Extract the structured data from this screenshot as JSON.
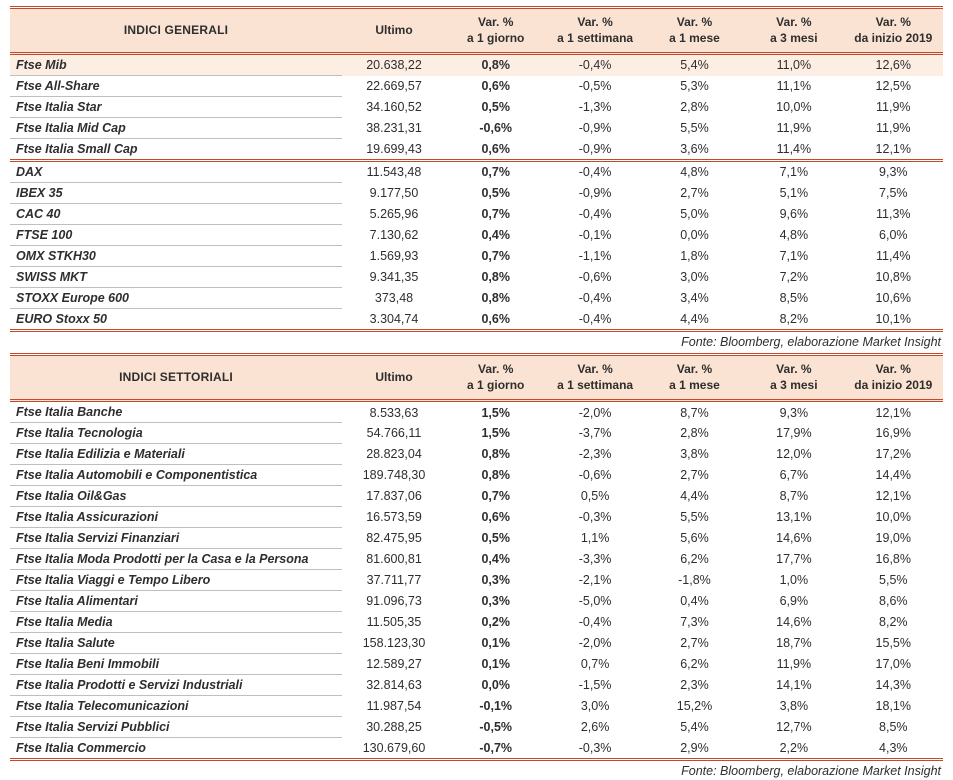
{
  "colors": {
    "accent_border": "#c2492b",
    "header_bg": "#fbe3d3",
    "highlight_bg": "#fdeee3",
    "text": "#2e2e2e",
    "row_line": "#bfbfbf"
  },
  "tables": [
    {
      "title": "INDICI GENERALI",
      "columns": [
        {
          "line1": "Ultimo",
          "line2": ""
        },
        {
          "line1": "Var. %",
          "line2": "a 1 giorno"
        },
        {
          "line1": "Var. %",
          "line2": "a 1 settimana"
        },
        {
          "line1": "Var. %",
          "line2": "a 1 mese"
        },
        {
          "line1": "Var. %",
          "line2": "a 3 mesi"
        },
        {
          "line1": "Var. %",
          "line2": "da inizio 2019"
        }
      ],
      "groups": [
        {
          "rows": [
            {
              "name": "Ftse Mib",
              "highlight": true,
              "values": [
                "20.638,22",
                "0,8%",
                "-0,4%",
                "5,4%",
                "11,0%",
                "12,6%"
              ]
            },
            {
              "name": "Ftse All-Share",
              "values": [
                "22.669,57",
                "0,6%",
                "-0,5%",
                "5,3%",
                "11,1%",
                "12,5%"
              ]
            },
            {
              "name": "Ftse Italia Star",
              "values": [
                "34.160,52",
                "0,5%",
                "-1,3%",
                "2,8%",
                "10,0%",
                "11,9%"
              ]
            },
            {
              "name": "Ftse Italia Mid Cap",
              "values": [
                "38.231,31",
                "-0,6%",
                "-0,9%",
                "5,5%",
                "11,9%",
                "11,9%"
              ]
            },
            {
              "name": "Ftse Italia Small Cap",
              "values": [
                "19.699,43",
                "0,6%",
                "-0,9%",
                "3,6%",
                "11,4%",
                "12,1%"
              ]
            }
          ]
        },
        {
          "rows": [
            {
              "name": "DAX",
              "values": [
                "11.543,48",
                "0,7%",
                "-0,4%",
                "4,8%",
                "7,1%",
                "9,3%"
              ]
            },
            {
              "name": "IBEX 35",
              "values": [
                "9.177,50",
                "0,5%",
                "-0,9%",
                "2,7%",
                "5,1%",
                "7,5%"
              ]
            },
            {
              "name": "CAC 40",
              "values": [
                "5.265,96",
                "0,7%",
                "-0,4%",
                "5,0%",
                "9,6%",
                "11,3%"
              ]
            },
            {
              "name": "FTSE 100",
              "values": [
                "7.130,62",
                "0,4%",
                "-0,1%",
                "0,0%",
                "4,8%",
                "6,0%"
              ]
            },
            {
              "name": "OMX STKH30",
              "values": [
                "1.569,93",
                "0,7%",
                "-1,1%",
                "1,8%",
                "7,1%",
                "11,4%"
              ]
            },
            {
              "name": "SWISS MKT",
              "values": [
                "9.341,35",
                "0,8%",
                "-0,6%",
                "3,0%",
                "7,2%",
                "10,8%"
              ]
            },
            {
              "name": "STOXX Europe 600",
              "values": [
                "373,48",
                "0,8%",
                "-0,4%",
                "3,4%",
                "8,5%",
                "10,6%"
              ]
            },
            {
              "name": "EURO Stoxx 50",
              "values": [
                "3.304,74",
                "0,6%",
                "-0,4%",
                "4,4%",
                "8,2%",
                "10,1%"
              ]
            }
          ]
        }
      ],
      "source": "Fonte: Bloomberg, elaborazione Market Insight"
    },
    {
      "title": "INDICI SETTORIALI",
      "columns": [
        {
          "line1": "Ultimo",
          "line2": ""
        },
        {
          "line1": "Var. %",
          "line2": "a 1 giorno"
        },
        {
          "line1": "Var. %",
          "line2": "a 1 settimana"
        },
        {
          "line1": "Var. %",
          "line2": "a 1 mese"
        },
        {
          "line1": "Var. %",
          "line2": "a 3 mesi"
        },
        {
          "line1": "Var. %",
          "line2": "da inizio 2019"
        }
      ],
      "groups": [
        {
          "rows": [
            {
              "name": "Ftse Italia Banche",
              "values": [
                "8.533,63",
                "1,5%",
                "-2,0%",
                "8,7%",
                "9,3%",
                "12,1%"
              ]
            },
            {
              "name": "Ftse Italia Tecnologia",
              "values": [
                "54.766,11",
                "1,5%",
                "-3,7%",
                "2,8%",
                "17,9%",
                "16,9%"
              ]
            },
            {
              "name": "Ftse Italia Edilizia e Materiali",
              "values": [
                "28.823,04",
                "0,8%",
                "-2,3%",
                "3,8%",
                "12,0%",
                "17,2%"
              ]
            },
            {
              "name": "Ftse Italia Automobili e Componentistica",
              "values": [
                "189.748,30",
                "0,8%",
                "-0,6%",
                "2,7%",
                "6,7%",
                "14,4%"
              ]
            },
            {
              "name": "Ftse Italia Oil&Gas",
              "values": [
                "17.837,06",
                "0,7%",
                "0,5%",
                "4,4%",
                "8,7%",
                "12,1%"
              ]
            },
            {
              "name": "Ftse Italia Assicurazioni",
              "values": [
                "16.573,59",
                "0,6%",
                "-0,3%",
                "5,5%",
                "13,1%",
                "10,0%"
              ]
            },
            {
              "name": "Ftse Italia Servizi Finanziari",
              "values": [
                "82.475,95",
                "0,5%",
                "1,1%",
                "5,6%",
                "14,6%",
                "19,0%"
              ]
            },
            {
              "name": "Ftse Italia Moda Prodotti per la Casa e la Persona",
              "values": [
                "81.600,81",
                "0,4%",
                "-3,3%",
                "6,2%",
                "17,7%",
                "16,8%"
              ]
            },
            {
              "name": "Ftse Italia Viaggi e Tempo Libero",
              "values": [
                "37.711,77",
                "0,3%",
                "-2,1%",
                "-1,8%",
                "1,0%",
                "5,5%"
              ]
            },
            {
              "name": "Ftse Italia Alimentari",
              "values": [
                "91.096,73",
                "0,3%",
                "-5,0%",
                "0,4%",
                "6,9%",
                "8,6%"
              ]
            },
            {
              "name": "Ftse Italia Media",
              "values": [
                "11.505,35",
                "0,2%",
                "-0,4%",
                "7,3%",
                "14,6%",
                "8,2%"
              ]
            },
            {
              "name": "Ftse Italia Salute",
              "values": [
                "158.123,30",
                "0,1%",
                "-2,0%",
                "2,7%",
                "18,7%",
                "15,5%"
              ]
            },
            {
              "name": "Ftse Italia Beni Immobili",
              "values": [
                "12.589,27",
                "0,1%",
                "0,7%",
                "6,2%",
                "11,9%",
                "17,0%"
              ]
            },
            {
              "name": "Ftse Italia Prodotti e Servizi Industriali",
              "values": [
                "32.814,63",
                "0,0%",
                "-1,5%",
                "2,3%",
                "14,1%",
                "14,3%"
              ]
            },
            {
              "name": "Ftse Italia Telecomunicazioni",
              "values": [
                "11.987,54",
                "-0,1%",
                "3,0%",
                "15,2%",
                "3,8%",
                "18,1%"
              ]
            },
            {
              "name": "Ftse Italia Servizi Pubblici",
              "values": [
                "30.288,25",
                "-0,5%",
                "2,6%",
                "5,4%",
                "12,7%",
                "8,5%"
              ]
            },
            {
              "name": "Ftse Italia Commercio",
              "values": [
                "130.679,60",
                "-0,7%",
                "-0,3%",
                "2,9%",
                "2,2%",
                "4,3%"
              ]
            }
          ]
        }
      ],
      "source": "Fonte: Bloomberg, elaborazione Market Insight"
    }
  ]
}
